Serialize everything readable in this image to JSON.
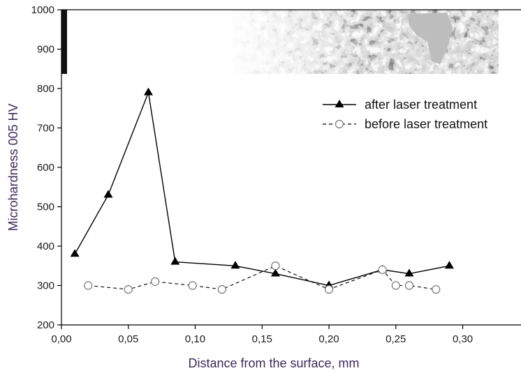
{
  "chart_data": {
    "type": "line",
    "xlabel": "Distance from the surface, mm",
    "ylabel": "Microhardness 005 HV",
    "xlim": [
      0,
      0.33
    ],
    "ylim": [
      200,
      1000
    ],
    "x_ticks": [
      "0,00",
      "0,05",
      "0,10",
      "0,15",
      "0,20",
      "0,25",
      "0,30"
    ],
    "x_tick_values": [
      0,
      0.05,
      0.1,
      0.15,
      0.2,
      0.25,
      0.3
    ],
    "y_ticks": [
      "200",
      "300",
      "400",
      "500",
      "600",
      "700",
      "800",
      "900",
      "1000"
    ],
    "y_tick_values": [
      200,
      300,
      400,
      500,
      600,
      700,
      800,
      900,
      1000
    ],
    "legend_position": "top-right",
    "grid": false,
    "micrograph_inset": "microstructure image across top of plot",
    "series": [
      {
        "name": "after laser treatment",
        "line": "solid",
        "marker": "filled-triangle",
        "x": [
          0.01,
          0.035,
          0.065,
          0.085,
          0.13,
          0.16,
          0.2,
          0.24,
          0.26,
          0.29
        ],
        "y": [
          380,
          530,
          790,
          360,
          350,
          330,
          300,
          340,
          330,
          350
        ]
      },
      {
        "name": "before laser treatment",
        "line": "dashed",
        "marker": "open-circle",
        "x": [
          0.02,
          0.05,
          0.07,
          0.098,
          0.12,
          0.16,
          0.2,
          0.24,
          0.25,
          0.26,
          0.28
        ],
        "y": [
          300,
          290,
          310,
          300,
          290,
          350,
          290,
          340,
          300,
          300,
          290
        ]
      }
    ]
  }
}
